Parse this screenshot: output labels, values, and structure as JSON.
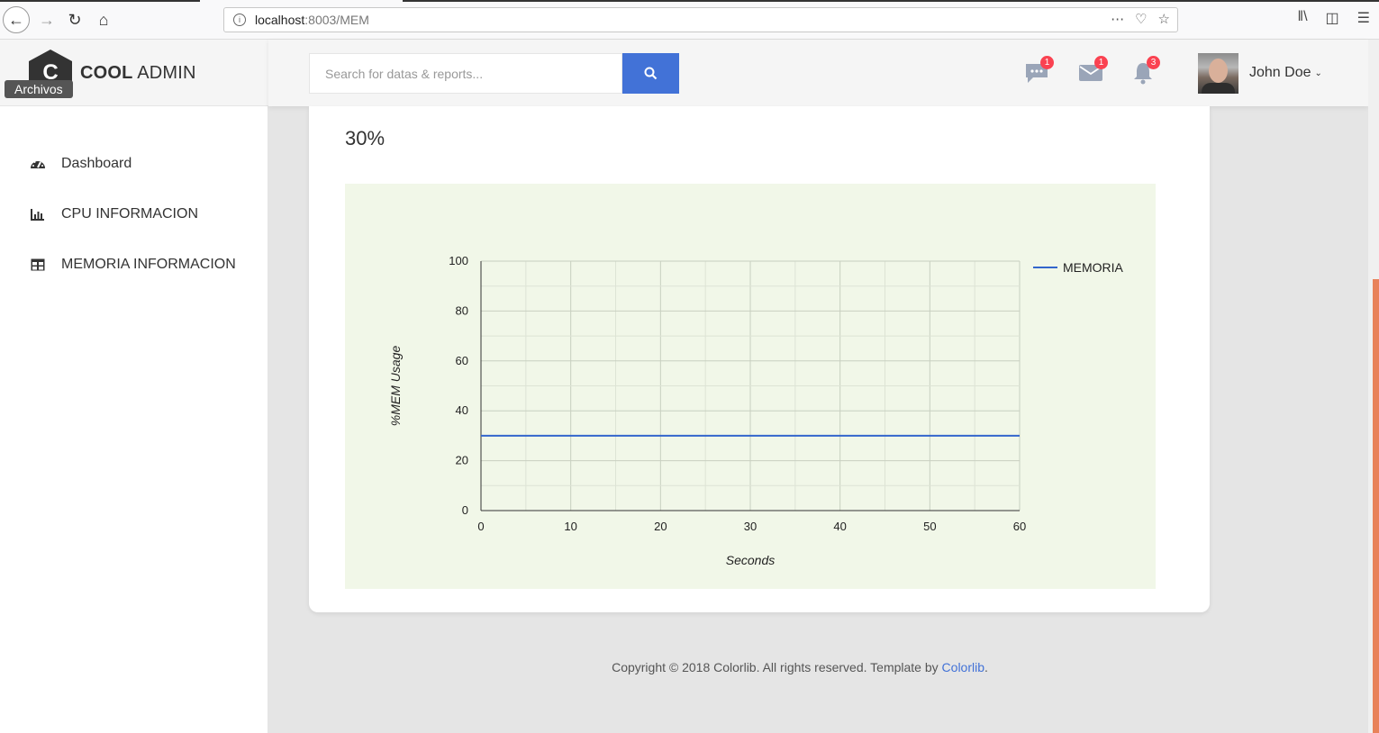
{
  "browser": {
    "url_host": "localhost",
    "url_rest": ":8003/MEM"
  },
  "logo": {
    "letter": "C",
    "text_bold": "COOL",
    "text_regular": " ADMIN",
    "tooltip": "Archivos"
  },
  "sidebar": {
    "items": [
      {
        "label": "Dashboard",
        "icon": "tachometer-icon"
      },
      {
        "label": "CPU INFORMACION",
        "icon": "bar-chart-icon"
      },
      {
        "label": "MEMORIA INFORMACION",
        "icon": "table-icon"
      }
    ]
  },
  "header": {
    "search_placeholder": "Search for datas & reports...",
    "notifications": [
      {
        "icon": "chat-icon",
        "count": "1"
      },
      {
        "icon": "mail-icon",
        "count": "1"
      },
      {
        "icon": "bell-icon",
        "count": "3"
      }
    ],
    "user_name": "John Doe"
  },
  "main": {
    "percent": "30%"
  },
  "chart_data": {
    "type": "line",
    "xlabel": "Seconds",
    "ylabel": "%MEM Usage",
    "xlim": [
      0,
      60
    ],
    "ylim": [
      0,
      100
    ],
    "xticks": [
      "0",
      "10",
      "20",
      "30",
      "40",
      "50",
      "60"
    ],
    "yticks": [
      "0",
      "20",
      "40",
      "60",
      "80",
      "100"
    ],
    "grid": true,
    "legend_position": "top-right",
    "series": [
      {
        "name": "MEMORIA",
        "color": "#3366cc",
        "x": [
          0,
          60
        ],
        "values": [
          30,
          30
        ]
      }
    ]
  },
  "footer": {
    "text": "Copyright © 2018 Colorlib. All rights reserved. Template by ",
    "link": "Colorlib",
    "end": "."
  }
}
